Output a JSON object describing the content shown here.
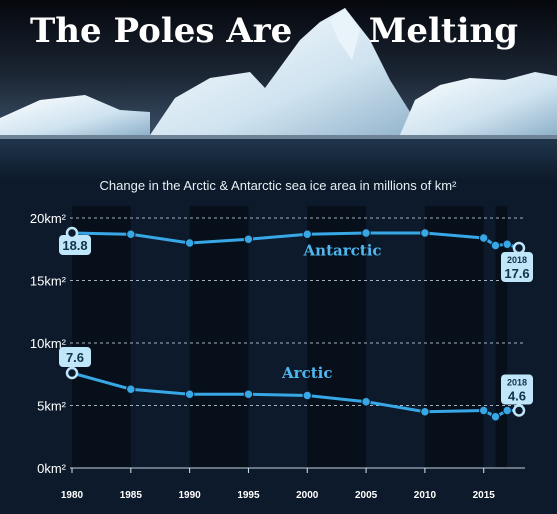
{
  "header": {
    "title_left": "The Poles Are",
    "title_right": "Melting"
  },
  "subtitle": "Change in the Arctic & Antarctic sea ice area in millions of km²",
  "colors": {
    "background": "#0d1a2b",
    "line": "#38a7e6",
    "label_fill": "#bfe6f9",
    "label_text": "#12324a",
    "grid": "#d6e6f2",
    "series_text": "#4fb7f0"
  },
  "chart_data": {
    "type": "line",
    "title": "Change in the Arctic & Antarctic sea ice area in millions of km²",
    "xlabel": "",
    "ylabel": "",
    "x_ticks": [
      "1980",
      "1985",
      "1990",
      "1995",
      "2000",
      "2005",
      "2010",
      "2015"
    ],
    "y_ticks": [
      "0km²",
      "5km²",
      "10km²",
      "15km²",
      "20km²"
    ],
    "ylim": [
      0,
      20
    ],
    "xlim": [
      1980,
      2018
    ],
    "grid": true,
    "series": [
      {
        "name": "Antarctic",
        "x": [
          1980,
          1985,
          1990,
          1995,
          2000,
          2005,
          2010,
          2015,
          2016,
          2017,
          2018
        ],
        "y": [
          18.8,
          18.7,
          18.0,
          18.3,
          18.7,
          18.8,
          18.8,
          18.4,
          17.8,
          17.9,
          17.6
        ],
        "start_label": "18.8",
        "end_year_label": "2018",
        "end_label": "17.6"
      },
      {
        "name": "Arctic",
        "x": [
          1980,
          1985,
          1990,
          1995,
          2000,
          2005,
          2010,
          2015,
          2016,
          2017,
          2018
        ],
        "y": [
          7.6,
          6.3,
          5.9,
          5.9,
          5.8,
          5.3,
          4.5,
          4.6,
          4.1,
          4.6,
          4.6
        ],
        "start_label": "7.6",
        "end_year_label": "2018",
        "end_label": "4.6"
      }
    ]
  }
}
